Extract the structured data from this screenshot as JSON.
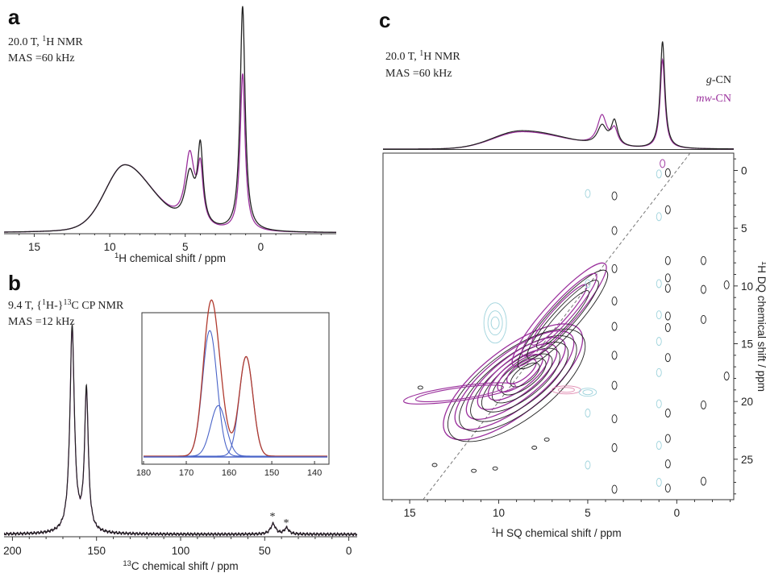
{
  "panels": {
    "a": {
      "label": "a",
      "annotation_lines": [
        {
          "pre": "20.0 T, ",
          "sup": "1",
          "post": "H NMR"
        },
        {
          "pre": "MAS =60 kHz",
          "sup": "",
          "post": ""
        }
      ]
    },
    "b": {
      "label": "b",
      "annotation_lines": [
        {
          "pre": "9.4 T, {",
          "sup": "1",
          "post": "H-}"
        },
        {
          "pre": "MAS =12 kHz",
          "sup": "",
          "post": ""
        }
      ],
      "annotation_line1_tail": {
        "sup": "13",
        "post": "C CP NMR"
      },
      "spinning_sidebands": [
        "*",
        "*"
      ]
    },
    "c": {
      "label": "c",
      "annotation_lines": [
        {
          "pre": "20.0 T, ",
          "sup": "1",
          "post": "H NMR"
        },
        {
          "pre": "MAS =60 kHz",
          "sup": "",
          "post": ""
        }
      ],
      "legend": [
        {
          "name": "g-CN",
          "prefix": "g",
          "suffix": "-CN",
          "color": "#222222"
        },
        {
          "name": "mw-CN",
          "prefix": "mw",
          "suffix": "-CN",
          "color": "#9a2f9c"
        }
      ]
    }
  },
  "colors": {
    "g_CN": "#222222",
    "mw_CN": "#9a2f9c",
    "inset_fit": "#b03a2e",
    "inset_components": "#4a64c8",
    "negative_contours": "#9fd3dc",
    "negative_contours_pink": "#e08ab0",
    "diagonal": "#777777"
  },
  "chart_data": [
    {
      "panel": "a",
      "type": "line",
      "xlabel": {
        "sup": "1",
        "text": "H chemical shift / ppm"
      },
      "xlim": [
        17,
        -5
      ],
      "x_reversed": true,
      "xticks": [
        15,
        10,
        5,
        0
      ],
      "series": [
        {
          "name": "g-CN",
          "peaks": [
            {
              "x": 9.0,
              "h": 0.3
            },
            {
              "x": 4.7,
              "h": 0.22
            },
            {
              "x": 4.0,
              "h": 0.34
            },
            {
              "x": 1.2,
              "h": 1.0
            }
          ]
        },
        {
          "name": "mw-CN",
          "peaks": [
            {
              "x": 9.0,
              "h": 0.3
            },
            {
              "x": 4.7,
              "h": 0.31
            },
            {
              "x": 4.0,
              "h": 0.24
            },
            {
              "x": 1.2,
              "h": 0.7
            }
          ]
        }
      ]
    },
    {
      "panel": "b",
      "type": "line",
      "xlabel": {
        "sup": "13",
        "text": "C chemical shift / ppm"
      },
      "xlim": [
        205,
        -5
      ],
      "x_reversed": true,
      "xticks": [
        200,
        150,
        100,
        50,
        0
      ],
      "series": [
        {
          "name": "g-CN",
          "peaks": [
            {
              "x": 164.5,
              "h": 1.0
            },
            {
              "x": 156.0,
              "h": 0.69
            },
            {
              "x": 45.0,
              "h": 0.05
            },
            {
              "x": 37.0,
              "h": 0.03
            }
          ]
        },
        {
          "name": "mw-CN",
          "peaks": [
            {
              "x": 164.5,
              "h": 0.99
            },
            {
              "x": 156.0,
              "h": 0.68
            },
            {
              "x": 45.0,
              "h": 0.05
            },
            {
              "x": 37.0,
              "h": 0.03
            }
          ]
        }
      ],
      "inset": {
        "xlim": [
          180,
          137
        ],
        "xticks": [
          180,
          170,
          160,
          150,
          140
        ],
        "components": [
          {
            "x": 164.5,
            "h": 0.82
          },
          {
            "x": 162.5,
            "h": 0.33
          },
          {
            "x": 156.0,
            "h": 0.65
          }
        ]
      }
    },
    {
      "panel": "c",
      "type": "heatmap",
      "xlabel": {
        "sup": "1",
        "text": "H SQ chemical shift / ppm"
      },
      "ylabel": {
        "sup": "1",
        "text": "H DQ chemical shift / ppm"
      },
      "xlim": [
        16.5,
        -3.2
      ],
      "ylim": [
        -1.5,
        28.5
      ],
      "xticks": [
        15,
        10,
        5,
        0
      ],
      "yticks": [
        0,
        5,
        10,
        15,
        20,
        25
      ],
      "projection_series": [
        {
          "name": "g-CN",
          "peaks": [
            {
              "x": 8.7,
              "h": 0.17
            },
            {
              "x": 4.2,
              "h": 0.18
            },
            {
              "x": 3.5,
              "h": 0.23
            },
            {
              "x": 0.8,
              "h": 1.0
            }
          ]
        },
        {
          "name": "mw-CN",
          "peaks": [
            {
              "x": 8.7,
              "h": 0.16
            },
            {
              "x": 4.2,
              "h": 0.28
            },
            {
              "x": 3.5,
              "h": 0.15
            },
            {
              "x": 0.8,
              "h": 0.83
            }
          ]
        }
      ],
      "diagonal": "DQ = 2 × SQ"
    }
  ]
}
